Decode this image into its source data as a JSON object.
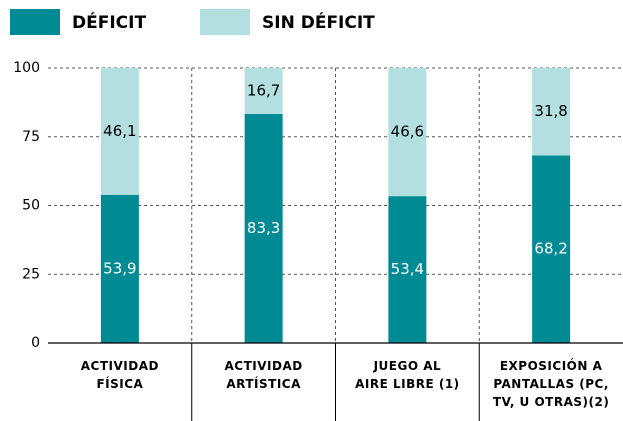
{
  "chart_data": {
    "type": "stacked_bar",
    "categories": [
      [
        "ACTIVIDAD",
        "FÍSICA"
      ],
      [
        "ACTIVIDAD",
        "ARTÍSTICA"
      ],
      [
        "JUEGO AL",
        "AIRE LIBRE (1)"
      ],
      [
        "EXPOSICIÓN A",
        "PANTALLAS (PC,",
        "TV, U OTRAS)(2)"
      ]
    ],
    "series": [
      {
        "name": "DÉFICIT",
        "color": "#008b94",
        "values": [
          53.9,
          83.3,
          53.4,
          68.2
        ],
        "value_labels": [
          "53,9",
          "83,3",
          "53,4",
          "68,2"
        ]
      },
      {
        "name": "SIN DÉFICIT",
        "color": "#b3dfe0",
        "values": [
          46.1,
          16.7,
          46.6,
          31.8
        ],
        "value_labels": [
          "46,1",
          "16,7",
          "46,6",
          "31,8"
        ]
      }
    ],
    "ylim": [
      0,
      100
    ],
    "yticks": [
      0,
      25,
      50,
      75,
      100
    ],
    "grid": true
  }
}
